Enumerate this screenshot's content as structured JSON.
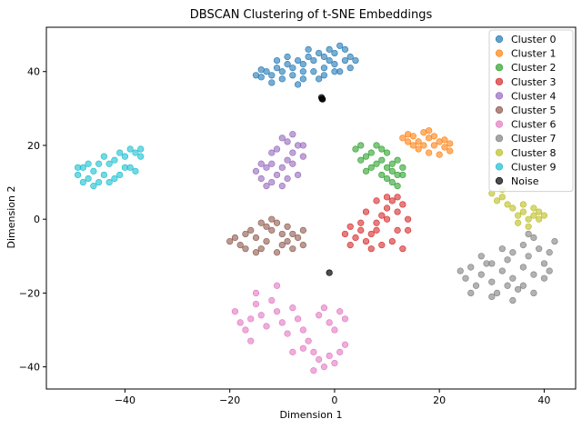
{
  "chart_data": {
    "type": "scatter",
    "title": "DBSCAN Clustering of t-SNE Embeddings",
    "xlabel": "Dimension 1",
    "ylabel": "Dimension 2",
    "xlim": [
      -55,
      46
    ],
    "ylim": [
      -46,
      52
    ],
    "xticks": [
      -40,
      -20,
      0,
      20,
      40
    ],
    "yticks": [
      -40,
      -20,
      0,
      20,
      40
    ],
    "xtick_labels": [
      "−40",
      "−20",
      "0",
      "20",
      "40"
    ],
    "ytick_labels": [
      "−40",
      "−20",
      "0",
      "20",
      "40"
    ],
    "grid": false,
    "legend_position": "top-right",
    "series": [
      {
        "name": "Cluster 0",
        "color": "#1f77b4",
        "points": [
          [
            -15,
            39
          ],
          [
            -14,
            38.5
          ],
          [
            -13,
            40
          ],
          [
            -12,
            39
          ],
          [
            -11,
            41
          ],
          [
            -10,
            40
          ],
          [
            -9,
            42
          ],
          [
            -8,
            41
          ],
          [
            -7,
            43
          ],
          [
            -6,
            42
          ],
          [
            -5,
            44
          ],
          [
            -4,
            43
          ],
          [
            -3,
            45
          ],
          [
            -2,
            44
          ],
          [
            -1,
            46
          ],
          [
            0,
            45
          ],
          [
            1,
            47
          ],
          [
            2,
            46
          ],
          [
            3,
            44
          ],
          [
            4,
            43
          ],
          [
            -12,
            37
          ],
          [
            -10,
            38
          ],
          [
            -8,
            39
          ],
          [
            -6,
            38
          ],
          [
            -4,
            40
          ],
          [
            -2,
            41
          ],
          [
            0,
            42
          ],
          [
            2,
            43
          ],
          [
            -7,
            36.5
          ],
          [
            -3,
            38
          ],
          [
            1,
            40
          ],
          [
            3,
            41
          ],
          [
            -9,
            44
          ],
          [
            -5,
            46
          ],
          [
            -1,
            43
          ],
          [
            -14,
            40.5
          ],
          [
            -11,
            43
          ],
          [
            -6,
            40
          ],
          [
            -2,
            39
          ],
          [
            0,
            40
          ]
        ]
      },
      {
        "name": "Cluster 1",
        "color": "#ff7f0e",
        "points": [
          [
            13,
            22
          ],
          [
            14,
            23
          ],
          [
            15,
            22.5
          ],
          [
            16,
            21
          ],
          [
            17,
            23.5
          ],
          [
            18,
            22
          ],
          [
            19,
            20
          ],
          [
            20,
            21
          ],
          [
            21,
            19.5
          ],
          [
            22,
            20.5
          ],
          [
            16,
            19
          ],
          [
            18,
            18
          ],
          [
            20,
            17.5
          ],
          [
            14,
            21
          ],
          [
            17,
            20
          ],
          [
            19,
            22.5
          ],
          [
            21,
            21.5
          ],
          [
            15,
            20
          ],
          [
            18,
            24
          ],
          [
            22,
            18.5
          ]
        ]
      },
      {
        "name": "Cluster 2",
        "color": "#2ca02c",
        "points": [
          [
            4,
            19
          ],
          [
            5,
            20
          ],
          [
            6,
            17
          ],
          [
            7,
            18
          ],
          [
            8,
            15
          ],
          [
            9,
            16
          ],
          [
            10,
            14
          ],
          [
            11,
            13
          ],
          [
            12,
            12
          ],
          [
            10,
            18
          ],
          [
            12,
            16
          ],
          [
            13,
            14
          ],
          [
            7,
            14
          ],
          [
            9,
            12
          ],
          [
            11,
            10
          ],
          [
            12,
            9
          ],
          [
            5,
            16
          ],
          [
            8,
            20
          ],
          [
            10,
            11
          ],
          [
            13,
            12
          ],
          [
            6,
            13
          ],
          [
            9,
            19
          ],
          [
            11,
            15
          ]
        ]
      },
      {
        "name": "Cluster 3",
        "color": "#d62728",
        "points": [
          [
            2,
            -4
          ],
          [
            3,
            -2
          ],
          [
            4,
            -5
          ],
          [
            5,
            -3
          ],
          [
            6,
            -6
          ],
          [
            7,
            -4
          ],
          [
            8,
            -1
          ],
          [
            9,
            1
          ],
          [
            10,
            3
          ],
          [
            11,
            5
          ],
          [
            12,
            2
          ],
          [
            13,
            4
          ],
          [
            14,
            0
          ],
          [
            12,
            -3
          ],
          [
            11,
            -6
          ],
          [
            13,
            -8
          ],
          [
            9,
            -7
          ],
          [
            7,
            -8
          ],
          [
            5,
            -1
          ],
          [
            6,
            2
          ],
          [
            8,
            5
          ],
          [
            10,
            6
          ],
          [
            14,
            -3
          ],
          [
            3,
            -7
          ],
          [
            12,
            6
          ],
          [
            8,
            -3
          ],
          [
            10,
            0
          ]
        ]
      },
      {
        "name": "Cluster 4",
        "color": "#9467bd",
        "points": [
          [
            -15,
            13
          ],
          [
            -14,
            11
          ],
          [
            -13,
            14
          ],
          [
            -12,
            10
          ],
          [
            -11,
            12
          ],
          [
            -10,
            14
          ],
          [
            -9,
            16
          ],
          [
            -8,
            18
          ],
          [
            -7,
            20
          ],
          [
            -9,
            21
          ],
          [
            -11,
            19
          ],
          [
            -12,
            18
          ],
          [
            -8,
            15
          ],
          [
            -6,
            17
          ],
          [
            -10,
            9
          ],
          [
            -13,
            9
          ],
          [
            -7,
            12
          ],
          [
            -6,
            20
          ],
          [
            -10,
            22
          ],
          [
            -8,
            23
          ],
          [
            -12,
            15
          ],
          [
            -14,
            15
          ],
          [
            -9,
            11
          ]
        ]
      },
      {
        "name": "Cluster 5",
        "color": "#8c564b",
        "points": [
          [
            -20,
            -6
          ],
          [
            -19,
            -5
          ],
          [
            -18,
            -7
          ],
          [
            -17,
            -4
          ],
          [
            -16,
            -3
          ],
          [
            -15,
            -5
          ],
          [
            -14,
            -8
          ],
          [
            -13,
            -6
          ],
          [
            -12,
            -3
          ],
          [
            -11,
            -1
          ],
          [
            -10,
            -4
          ],
          [
            -9,
            -6
          ],
          [
            -8,
            -8
          ],
          [
            -7,
            -5
          ],
          [
            -6,
            -3
          ],
          [
            -13,
            -2
          ],
          [
            -15,
            -9
          ],
          [
            -11,
            -9
          ],
          [
            -9,
            -2
          ],
          [
            -17,
            -8
          ],
          [
            -12,
            0
          ],
          [
            -6,
            -7
          ],
          [
            -14,
            -1
          ],
          [
            -10,
            -7
          ],
          [
            -8,
            -4
          ]
        ]
      },
      {
        "name": "Cluster 6",
        "color": "#e377c2",
        "points": [
          [
            -19,
            -25
          ],
          [
            -18,
            -28
          ],
          [
            -17,
            -30
          ],
          [
            -16,
            -33
          ],
          [
            -15,
            -23
          ],
          [
            -14,
            -26
          ],
          [
            -13,
            -29
          ],
          [
            -12,
            -22
          ],
          [
            -11,
            -25
          ],
          [
            -10,
            -28
          ],
          [
            -9,
            -31
          ],
          [
            -8,
            -24
          ],
          [
            -7,
            -27
          ],
          [
            -6,
            -30
          ],
          [
            -5,
            -33
          ],
          [
            -4,
            -36
          ],
          [
            -3,
            -38
          ],
          [
            -2,
            -40
          ],
          [
            -1,
            -37
          ],
          [
            0,
            -39
          ],
          [
            1,
            -36
          ],
          [
            2,
            -34
          ],
          [
            -3,
            -26
          ],
          [
            -1,
            -28
          ],
          [
            1,
            -25
          ],
          [
            2,
            -27
          ],
          [
            -2,
            -24
          ],
          [
            0,
            -30
          ],
          [
            -15,
            -20
          ],
          [
            -11,
            -18
          ],
          [
            -6,
            -35
          ],
          [
            -8,
            -36
          ],
          [
            -4,
            -41
          ],
          [
            -16,
            -27
          ]
        ]
      },
      {
        "name": "Cluster 7",
        "color": "#7f7f7f",
        "points": [
          [
            24,
            -14
          ],
          [
            25,
            -16
          ],
          [
            26,
            -13
          ],
          [
            27,
            -18
          ],
          [
            28,
            -15
          ],
          [
            29,
            -12
          ],
          [
            30,
            -17
          ],
          [
            31,
            -20
          ],
          [
            32,
            -14
          ],
          [
            33,
            -11
          ],
          [
            34,
            -16
          ],
          [
            35,
            -19
          ],
          [
            36,
            -13
          ],
          [
            37,
            -10
          ],
          [
            38,
            -15
          ],
          [
            39,
            -8
          ],
          [
            40,
            -12
          ],
          [
            41,
            -9
          ],
          [
            42,
            -6
          ],
          [
            36,
            -7
          ],
          [
            38,
            -5
          ],
          [
            34,
            -9
          ],
          [
            32,
            -8
          ],
          [
            28,
            -10
          ],
          [
            30,
            -21
          ],
          [
            36,
            -18
          ],
          [
            40,
            -16
          ],
          [
            26,
            -20
          ],
          [
            34,
            -22
          ],
          [
            38,
            -20
          ],
          [
            41,
            -14
          ],
          [
            30,
            -12
          ],
          [
            33,
            -18
          ],
          [
            37,
            -4
          ]
        ]
      },
      {
        "name": "Cluster 8",
        "color": "#bcbd22",
        "points": [
          [
            30,
            7
          ],
          [
            31,
            5
          ],
          [
            32,
            6
          ],
          [
            33,
            4
          ],
          [
            34,
            3
          ],
          [
            35,
            1
          ],
          [
            36,
            2
          ],
          [
            37,
            0
          ],
          [
            38,
            1
          ],
          [
            39,
            2
          ],
          [
            40,
            1
          ],
          [
            36,
            4
          ],
          [
            38,
            3
          ],
          [
            35,
            -1
          ],
          [
            37,
            -2
          ],
          [
            39,
            0
          ],
          [
            32,
            8
          ]
        ]
      },
      {
        "name": "Cluster 9",
        "color": "#17becf",
        "points": [
          [
            -49,
            12
          ],
          [
            -48,
            14
          ],
          [
            -47,
            11
          ],
          [
            -46,
            13
          ],
          [
            -45,
            10
          ],
          [
            -44,
            12
          ],
          [
            -43,
            15
          ],
          [
            -42,
            16
          ],
          [
            -41,
            18
          ],
          [
            -40,
            17
          ],
          [
            -39,
            19
          ],
          [
            -38,
            18
          ],
          [
            -37,
            17
          ],
          [
            -39,
            14
          ],
          [
            -41,
            12
          ],
          [
            -43,
            10
          ],
          [
            -45,
            15
          ],
          [
            -47,
            15
          ],
          [
            -48,
            10
          ],
          [
            -46,
            9
          ],
          [
            -40,
            14
          ],
          [
            -38,
            13
          ],
          [
            -44,
            17
          ],
          [
            -42,
            11
          ],
          [
            -37,
            19
          ],
          [
            -49,
            14
          ]
        ]
      },
      {
        "name": "Noise",
        "color": "#000000",
        "points": [
          [
            -2.5,
            33
          ],
          [
            -2.3,
            32.5
          ],
          [
            -2.4,
            32.6
          ],
          [
            -1,
            -14.5
          ]
        ]
      }
    ]
  }
}
